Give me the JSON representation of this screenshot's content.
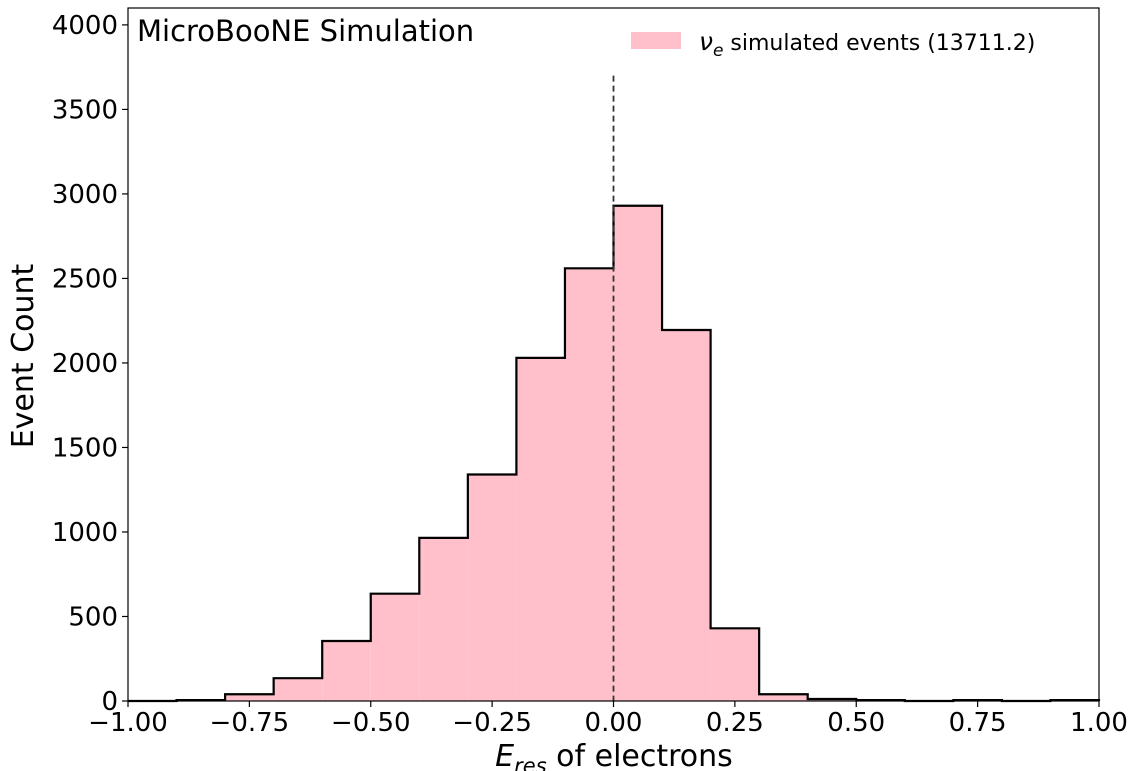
{
  "chart_data": {
    "type": "bar",
    "histogram": true,
    "annotation": "MicroBooNE Simulation",
    "xlabel": {
      "main": "E",
      "sub": "res",
      "rest": " of electrons"
    },
    "ylabel": "Event Count",
    "xlim": [
      -1.0,
      1.0
    ],
    "ylim": [
      0,
      4100
    ],
    "xticks": [
      "−1.00",
      "−0.75",
      "−0.50",
      "−0.25",
      "0.00",
      "0.25",
      "0.50",
      "0.75",
      "1.00"
    ],
    "yticks": [
      "0",
      "500",
      "1000",
      "1500",
      "2000",
      "2500",
      "3000",
      "3500",
      "4000"
    ],
    "bin_edges": [
      -1.0,
      -0.9,
      -0.8,
      -0.7,
      -0.6,
      -0.5,
      -0.4,
      -0.3,
      -0.2,
      -0.1,
      0.0,
      0.1,
      0.2,
      0.3,
      0.4,
      0.5,
      0.6,
      0.7,
      0.8,
      0.9,
      1.0
    ],
    "series": [
      {
        "name": "ν_e simulated events (13711.2)",
        "values": [
          0,
          5,
          40,
          135,
          355,
          635,
          965,
          1340,
          2030,
          2560,
          2930,
          2195,
          430,
          40,
          12,
          5,
          0,
          5,
          0,
          5
        ],
        "fill": "#ffc0cb",
        "edge": "#000000"
      }
    ],
    "vline": {
      "x": 0.0,
      "y_top": 3700,
      "style": "dashed"
    },
    "legend": {
      "placement": "top-right",
      "symbol": "ν",
      "symbol_sub": "e",
      "text": " simulated events (13711.2)"
    },
    "grid": false
  }
}
